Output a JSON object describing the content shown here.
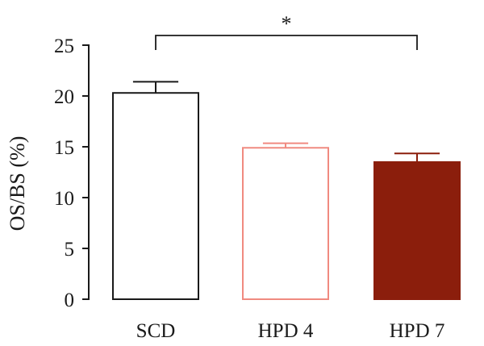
{
  "chart_data": {
    "type": "bar",
    "title": "",
    "xlabel": "",
    "ylabel": "OS/BS (%)",
    "ylim": [
      0,
      25
    ],
    "yticks": [
      0,
      5,
      10,
      15,
      20,
      25
    ],
    "grid": false,
    "legend": "none",
    "categories": [
      "SCD",
      "HPD 4",
      "HPD 7"
    ],
    "series": [
      {
        "values": [
          20.3,
          14.9,
          13.5
        ],
        "error": [
          1.1,
          0.45,
          0.85
        ]
      }
    ],
    "bar_styles": [
      {
        "fill": "#ffffff",
        "stroke": "#1a1a1a"
      },
      {
        "fill": "#ffffff",
        "stroke": "#f08a80"
      },
      {
        "fill": "#8b1e0c",
        "stroke": "#8b1e0c"
      }
    ],
    "annotations": [
      {
        "type": "significance",
        "from": "SCD",
        "to": "HPD 7",
        "label": "*"
      }
    ]
  }
}
